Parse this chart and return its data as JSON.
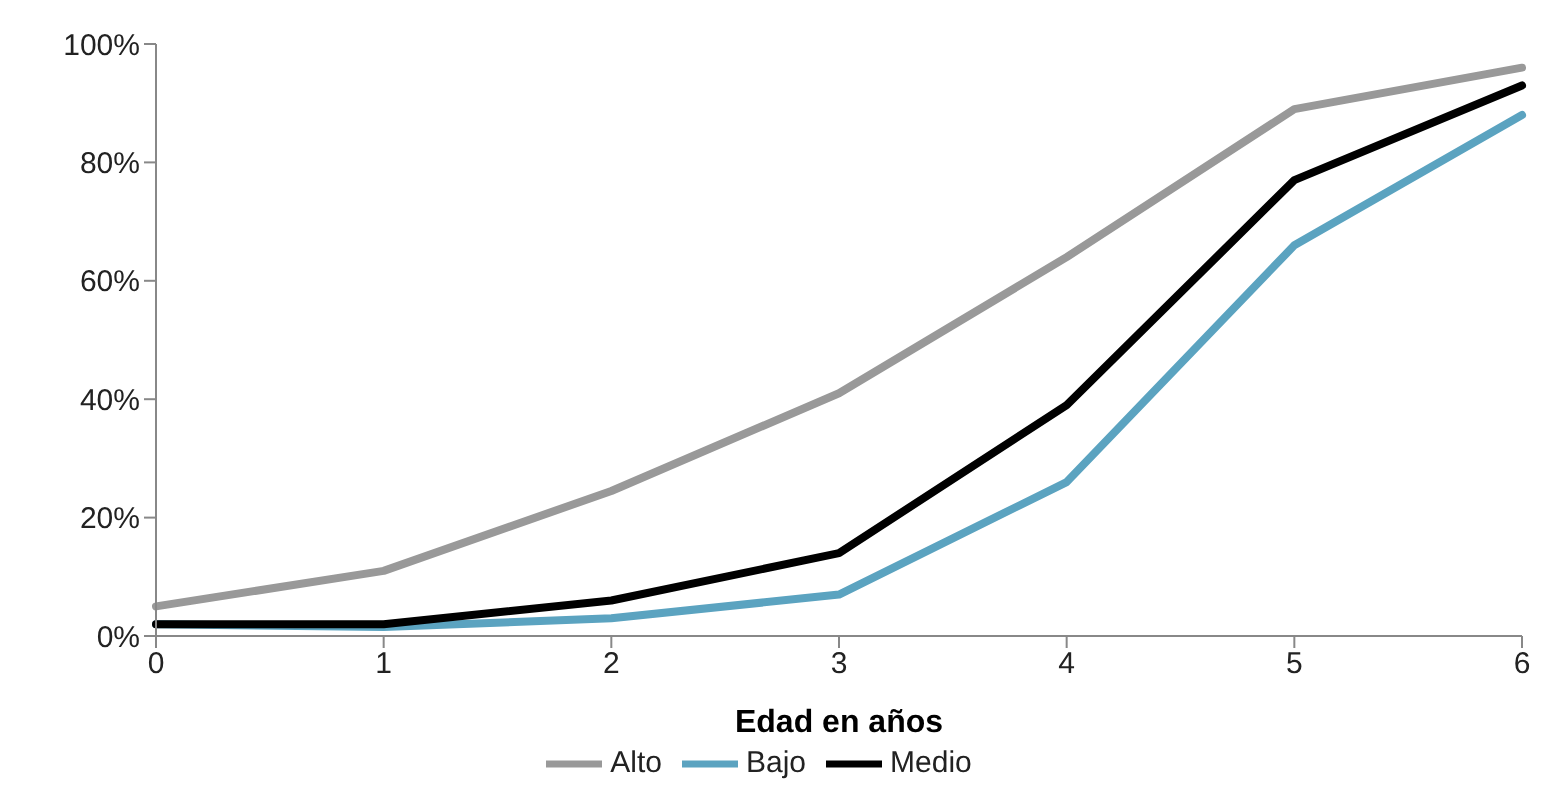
{
  "chart_data": {
    "type": "line",
    "xlabel": "Edad en años",
    "categories": [
      "0",
      "1",
      "2",
      "3",
      "4",
      "5",
      "6"
    ],
    "series": [
      {
        "name": "Bajo",
        "color": "#5ba3c0",
        "values": [
          2,
          1.5,
          3,
          7,
          26,
          66,
          88
        ]
      },
      {
        "name": "Medio",
        "color": "#000000",
        "values": [
          2,
          2,
          6,
          14,
          39,
          77,
          93
        ]
      },
      {
        "name": "Alto",
        "color": "#999999",
        "values": [
          5,
          11,
          24.5,
          41,
          64,
          89,
          96
        ]
      }
    ],
    "ylim": [
      0,
      100
    ],
    "yticks": [
      {
        "value": 0,
        "label": "0%"
      },
      {
        "value": 20,
        "label": "20%"
      },
      {
        "value": 40,
        "label": "40%"
      },
      {
        "value": 60,
        "label": "60%"
      },
      {
        "value": 80,
        "label": "80%"
      },
      {
        "value": 100,
        "label": "100%"
      }
    ],
    "grid": false,
    "legend": "bottom",
    "marker": "none",
    "line_style": "solid"
  }
}
